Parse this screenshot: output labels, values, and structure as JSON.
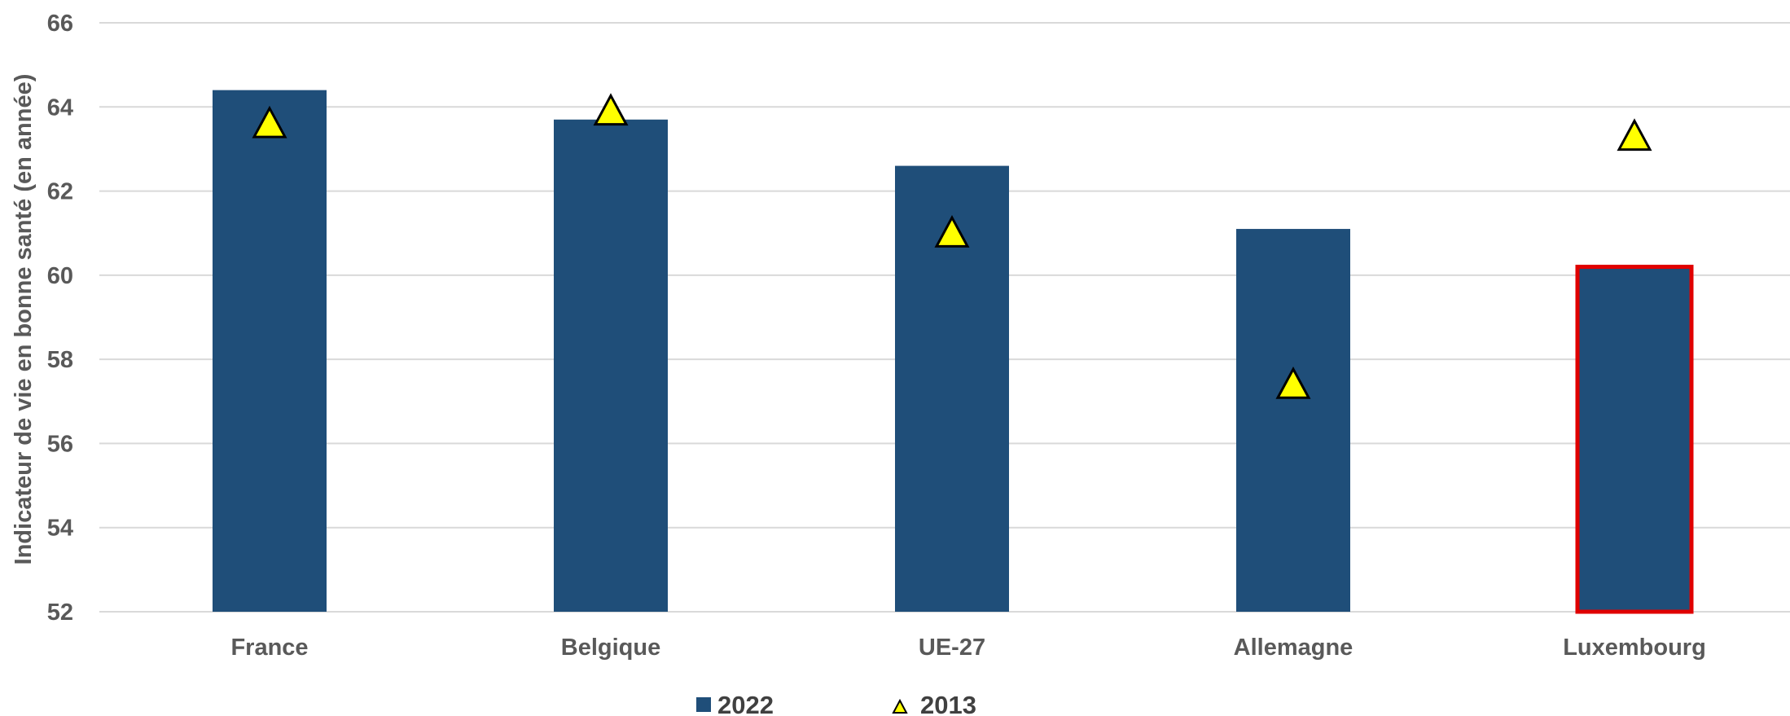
{
  "chart_data": {
    "type": "bar",
    "categories": [
      "France",
      "Belgique",
      "UE-27",
      "Allemagne",
      "Luxembourg"
    ],
    "series": [
      {
        "name": "2022",
        "kind": "bar",
        "values": [
          64.4,
          63.7,
          62.6,
          61.1,
          60.2
        ],
        "color": "#1f4e79"
      },
      {
        "name": "2013",
        "kind": "marker-triangle",
        "values": [
          63.6,
          63.9,
          61.0,
          57.4,
          63.3
        ],
        "color": "#ffff00"
      }
    ],
    "highlight": {
      "category": "Luxembourg",
      "outline_color": "#e00000"
    },
    "title": "",
    "xlabel": "",
    "ylabel": "Indicateur de vie en bonne santé (en année)",
    "ylim": [
      52,
      66
    ],
    "yticks": [
      52,
      54,
      56,
      58,
      60,
      62,
      64,
      66
    ],
    "grid": true,
    "legend_position": "bottom"
  },
  "colors": {
    "grid": "#d9d9d9",
    "tick_text": "#595959",
    "legend_text": "#404040"
  }
}
